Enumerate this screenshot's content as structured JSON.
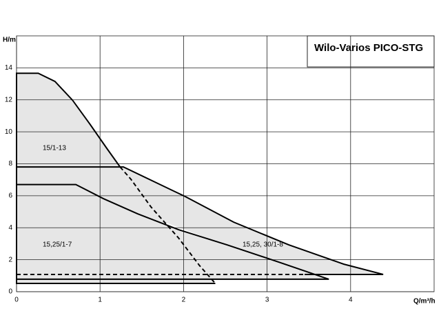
{
  "chart_data": {
    "type": "line",
    "title": "Wilo-Varios PICO-STG",
    "x_label": "Q/m³/h",
    "y_label": "H/m",
    "xlim": [
      0,
      5
    ],
    "ylim": [
      0,
      16
    ],
    "xticks": [
      0,
      1,
      2,
      3,
      4
    ],
    "yticks": [
      0,
      2,
      4,
      6,
      8,
      10,
      12,
      14
    ],
    "grid": true,
    "fill_color": "#e6e6e6",
    "line_color": "#000000",
    "series": [
      {
        "name": "15/1-13",
        "dashed": false,
        "fill": true,
        "x": [
          2.38,
          0,
          0,
          0.26,
          0.46,
          0.67,
          0.88,
          1.08,
          1.24
        ],
        "values": [
          0.52,
          0.52,
          13.66,
          13.66,
          13.15,
          11.98,
          10.47,
          8.97,
          7.8
        ]
      },
      {
        "dashed": true,
        "fill": false,
        "x": [
          1.24,
          1.37,
          1.61,
          1.94,
          2.19,
          2.38
        ],
        "values": [
          7.8,
          7.03,
          5.3,
          3.36,
          1.64,
          0.52
        ]
      },
      {
        "name": "15,25, 30/1-8",
        "dashed": false,
        "fill": true,
        "x": [
          0,
          1.28,
          2.02,
          2.6,
          3.26,
          3.92,
          4.39,
          3.45
        ],
        "values": [
          7.8,
          7.8,
          5.95,
          4.35,
          2.93,
          1.72,
          1.08,
          1.08
        ]
      },
      {
        "dashed": true,
        "fill": false,
        "x": [
          0,
          3.45
        ],
        "values": [
          1.08,
          1.08
        ]
      },
      {
        "name": "15,25/1-7",
        "dashed": false,
        "fill": true,
        "x": [
          3.74,
          0,
          0,
          0.71,
          1.04,
          1.45,
          1.94,
          2.52,
          3.09,
          3.74
        ],
        "values": [
          0.78,
          0.78,
          6.7,
          6.7,
          5.82,
          4.87,
          3.88,
          2.93,
          1.94,
          0.78
        ]
      }
    ]
  }
}
